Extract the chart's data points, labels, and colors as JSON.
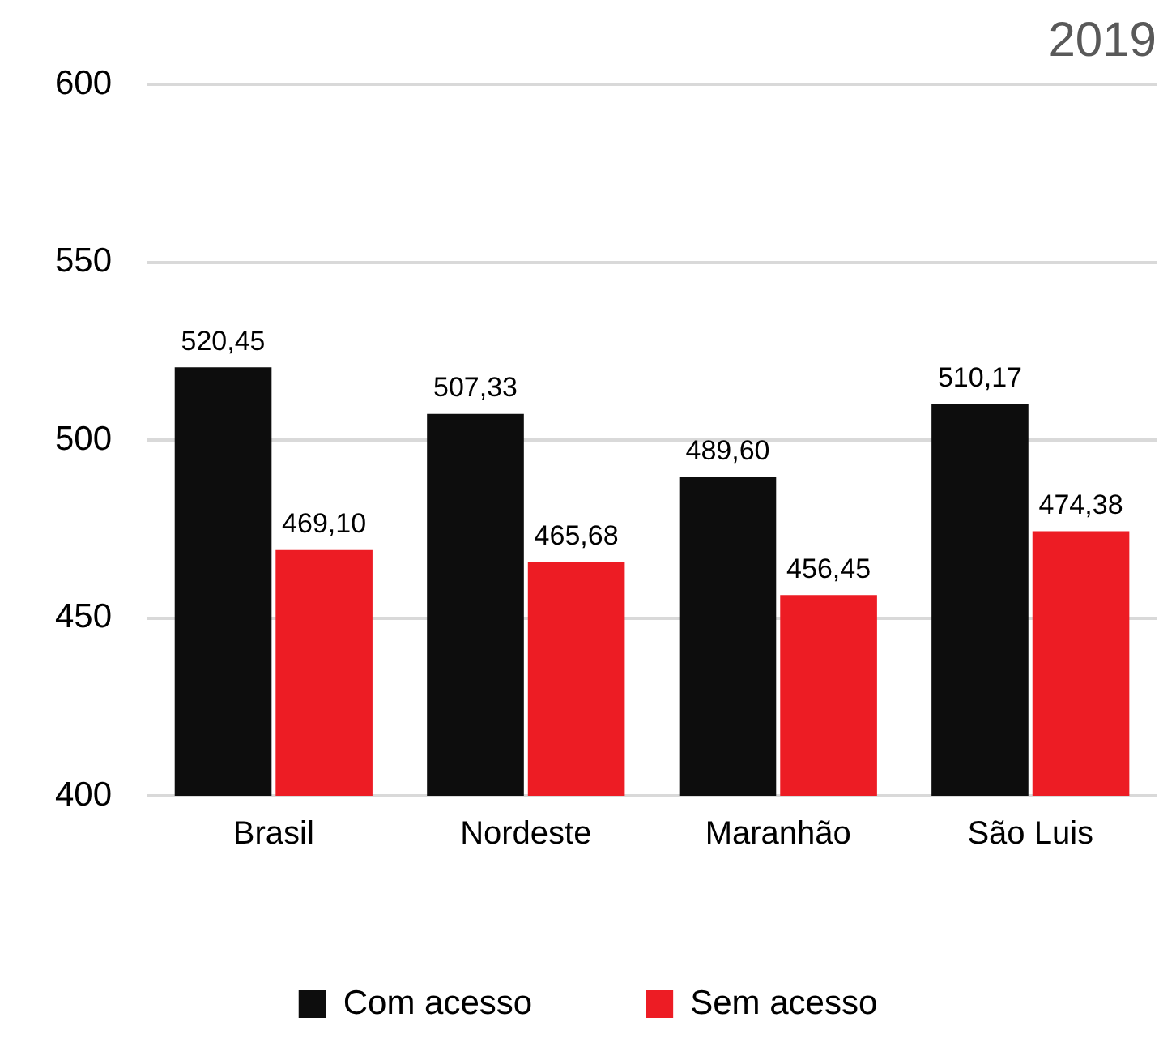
{
  "chart_data": {
    "type": "bar",
    "title": "2019",
    "categories": [
      "Brasil",
      "Nordeste",
      "Maranhão",
      "São Luis"
    ],
    "series": [
      {
        "name": "Com acesso",
        "color": "#0d0d0d",
        "values": [
          520.45,
          507.33,
          489.6,
          510.17
        ],
        "value_labels": [
          "520,45",
          "507,33",
          "489,60",
          "510,17"
        ]
      },
      {
        "name": "Sem acesso",
        "color": "#ed1c24",
        "values": [
          469.1,
          465.68,
          456.45,
          474.38
        ],
        "value_labels": [
          "469,10",
          "465,68",
          "456,45",
          "474,38"
        ]
      }
    ],
    "ylim": [
      400,
      600
    ],
    "yticks": [
      400,
      450,
      500,
      550,
      600
    ],
    "grid": "y",
    "legend": "bottom"
  }
}
